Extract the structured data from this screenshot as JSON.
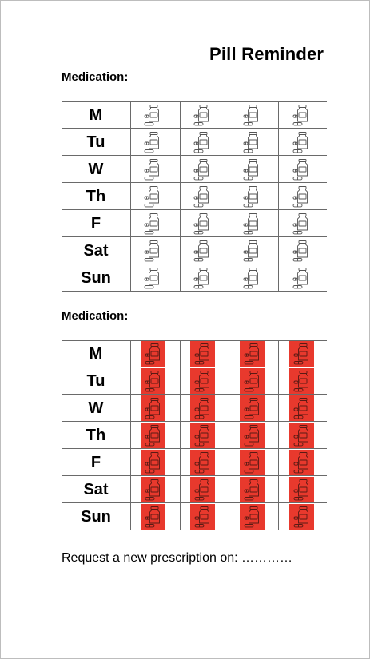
{
  "title": "Pill Reminder",
  "sections": [
    {
      "label": "Medication:",
      "filled": false
    },
    {
      "label": "Medication:",
      "filled": true
    }
  ],
  "days": [
    "M",
    "Tu",
    "W",
    "Th",
    "F",
    "Sat",
    "Sun"
  ],
  "doses_per_day": 4,
  "icon": "pill-bottle-icon",
  "colors": {
    "filled": "#e8392d",
    "line": "#6a6a6a",
    "icon_stroke": "#555555"
  },
  "footer": "Request a new prescription on: …………"
}
